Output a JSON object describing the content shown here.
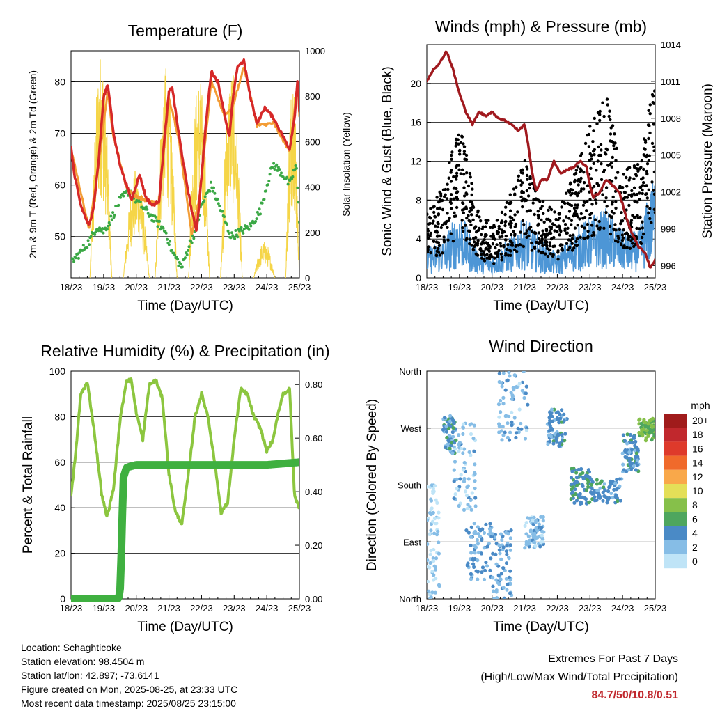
{
  "colors": {
    "t2m": "#d62828",
    "t9m": "#f39c34",
    "td": "#3aa845",
    "solar": "#f5d547",
    "wind": "#4d96d6",
    "gust": "#000000",
    "pressure": "#a0191e",
    "rh": "#8cc63f",
    "precip": "#3fb040",
    "extremes": "#c0282d"
  },
  "time_ticks": [
    "18/23",
    "19/23",
    "20/23",
    "21/23",
    "22/23",
    "23/23",
    "24/23",
    "25/23"
  ],
  "x_label": "Time (Day/UTC)",
  "chart_data": [
    {
      "type": "line",
      "title": "Temperature (F)",
      "ylabel": "2m & 9m T (Red, Orange) & 2m Td (Green)",
      "ylabel_right": "Solar Insolation (Yellow)",
      "ylim": [
        42,
        86
      ],
      "yticks": [
        50,
        60,
        70,
        80
      ],
      "ylim_right": [
        0,
        1000
      ],
      "yticks_right": [
        0,
        200,
        400,
        600,
        800,
        1000
      ],
      "xlim": [
        0,
        7
      ],
      "series": [
        {
          "color_key": "t2m",
          "x": [
            0,
            0.1,
            0.3,
            0.55,
            0.7,
            0.85,
            1.0,
            1.12,
            1.2,
            1.3,
            1.5,
            1.7,
            1.85,
            1.95,
            2.1,
            2.3,
            2.5,
            2.7,
            2.85,
            3.0,
            3.1,
            3.3,
            3.5,
            3.7,
            3.85,
            3.95,
            4.15,
            4.3,
            4.5,
            4.7,
            4.85,
            4.95,
            5.1,
            5.3,
            5.5,
            5.7,
            5.95,
            6.2,
            6.45,
            6.7,
            6.85,
            6.95,
            7.0
          ],
          "values": [
            67.5,
            62,
            56,
            52,
            56,
            65,
            77,
            79.5,
            76,
            70,
            64,
            60,
            57,
            59,
            62,
            57.5,
            56,
            57,
            68,
            78,
            79,
            70,
            62,
            55,
            51,
            58,
            73,
            82,
            80,
            74,
            69,
            76,
            83,
            84,
            77,
            72,
            75,
            73,
            70,
            67,
            73,
            81,
            74
          ]
        },
        {
          "color_key": "t9m",
          "x": [
            0,
            0.55,
            0.85,
            1.12,
            1.3,
            1.7,
            1.95,
            2.3,
            2.7,
            3.0,
            3.3,
            3.7,
            3.95,
            4.3,
            4.7,
            4.95,
            5.3,
            5.7,
            6.2,
            6.7,
            6.95,
            7.0
          ],
          "values": [
            67,
            51.5,
            64,
            78,
            69.5,
            59.5,
            58,
            57,
            56.5,
            77,
            69,
            50.5,
            58,
            80,
            73.5,
            75,
            83,
            71.5,
            72,
            66.5,
            80,
            73
          ]
        },
        {
          "color_key": "td",
          "x": [
            0,
            0.3,
            0.55,
            0.8,
            1.0,
            1.2,
            1.5,
            1.8,
            2.0,
            2.3,
            2.6,
            2.9,
            3.1,
            3.4,
            3.6,
            3.8,
            4.0,
            4.3,
            4.6,
            4.9,
            5.2,
            5.5,
            5.8,
            6.0,
            6.2,
            6.5,
            6.7,
            6.9,
            7.0
          ],
          "values": [
            45,
            47,
            49,
            52,
            51,
            53,
            57,
            59,
            57,
            55,
            53,
            51,
            47,
            44,
            48,
            51,
            56,
            60,
            55,
            50,
            51,
            52,
            55,
            60,
            64,
            62,
            60,
            64,
            53
          ]
        },
        {
          "color_key": "solar",
          "axis": "right",
          "peaks": [
            [
              0.58,
              1.25,
              1000
            ],
            [
              1.6,
              2.4,
              480
            ],
            [
              2.58,
              3.25,
              940
            ],
            [
              3.6,
              4.25,
              900
            ],
            [
              4.58,
              5.25,
              930
            ],
            [
              5.6,
              6.25,
              160
            ],
            [
              6.58,
              7.0,
              900
            ]
          ]
        }
      ]
    },
    {
      "type": "scatter",
      "title": "Winds (mph) & Pressure (mb)",
      "ylabel": "Sonic Wind & Gust (Blue, Black)",
      "ylabel_right": "Station Pressure (Maroon)",
      "ylim": [
        0,
        24
      ],
      "yticks": [
        0,
        4,
        8,
        12,
        16,
        20
      ],
      "ylim_right": [
        995,
        1014
      ],
      "yticks_right": [
        996,
        999,
        1002,
        1005,
        1008,
        1011,
        1014
      ],
      "xlim": [
        0,
        7
      ],
      "series": [
        {
          "color_key": "pressure",
          "type": "line",
          "axis": "right",
          "x": [
            0,
            0.2,
            0.4,
            0.6,
            0.8,
            1.0,
            1.2,
            1.4,
            1.6,
            1.8,
            2.0,
            2.2,
            2.4,
            2.6,
            2.8,
            3.0,
            3.1,
            3.2,
            3.35,
            3.5,
            3.7,
            3.9,
            4.1,
            4.3,
            4.5,
            4.7,
            4.9,
            5.0,
            5.1,
            5.3,
            5.5,
            5.7,
            5.9,
            6.1,
            6.3,
            6.5,
            6.7,
            6.85,
            7.0
          ],
          "values": [
            1011,
            1012,
            1012.5,
            1013.5,
            1012,
            1010,
            1008.5,
            1007.5,
            1008.5,
            1008.2,
            1008.5,
            1008,
            1007.8,
            1007.5,
            1007,
            1007.5,
            1006,
            1004,
            1002,
            1003,
            1003,
            1004.5,
            1003.5,
            1003.8,
            1004,
            1004.5,
            1004,
            1002.5,
            1001.5,
            1002,
            1003,
            1002.5,
            1002,
            1000,
            998.5,
            997.5,
            997,
            995.8,
            996.5
          ]
        },
        {
          "color_key": "wind",
          "name": "",
          "x": [
            0,
            0.5,
            1.0,
            1.5,
            2.0,
            2.5,
            3.0,
            3.5,
            4.0,
            4.5,
            5.0,
            5.5,
            6.0,
            6.5,
            7.0
          ],
          "values": [
            2,
            2.5,
            4.5,
            2,
            1.5,
            2.5,
            4,
            2.5,
            1.5,
            3,
            4,
            4.5,
            3,
            3,
            7
          ]
        },
        {
          "color_key": "gust",
          "name": "",
          "x": [
            0,
            0.5,
            1.0,
            1.5,
            2.0,
            2.5,
            3.0,
            3.5,
            4.0,
            4.5,
            5.0,
            5.5,
            6.0,
            6.5,
            7.0
          ],
          "values": [
            5,
            7,
            12,
            6,
            4,
            6,
            9,
            6,
            5,
            8,
            12,
            14,
            8,
            9,
            16
          ]
        }
      ]
    },
    {
      "type": "line",
      "title": "Relative Humidity (%) & Precipitation (in)",
      "ylabel": "Percent & Total Rainfall",
      "ylim": [
        0,
        100
      ],
      "yticks": [
        0,
        20,
        40,
        60,
        80,
        100
      ],
      "ylim_right": [
        0,
        0.85
      ],
      "yticks_right": [
        "0.00",
        "0.20",
        "0.40",
        "0.60",
        "0.80"
      ],
      "xlim": [
        0,
        7
      ],
      "series": [
        {
          "color_key": "rh",
          "x": [
            0,
            0.15,
            0.3,
            0.5,
            0.7,
            0.95,
            1.1,
            1.3,
            1.5,
            1.7,
            1.85,
            2.0,
            2.2,
            2.4,
            2.6,
            2.8,
            3.0,
            3.2,
            3.4,
            3.6,
            3.8,
            4.0,
            4.2,
            4.4,
            4.6,
            4.8,
            5.0,
            5.2,
            5.4,
            5.6,
            5.8,
            6.0,
            6.2,
            6.35,
            6.5,
            6.7,
            6.85,
            7.0
          ],
          "values": [
            45,
            65,
            90,
            95,
            75,
            45,
            36,
            48,
            78,
            96,
            96,
            82,
            70,
            94,
            96,
            88,
            55,
            38,
            33,
            55,
            80,
            90,
            80,
            60,
            38,
            42,
            70,
            92,
            90,
            80,
            75,
            65,
            70,
            82,
            90,
            92,
            45,
            40
          ]
        },
        {
          "color_key": "precip",
          "axis": "right",
          "x": [
            0,
            1.2,
            1.45,
            1.5,
            1.55,
            1.6,
            1.7,
            2.0,
            4.0,
            6.0,
            7.0
          ],
          "values": [
            0,
            0,
            0,
            0.02,
            0.2,
            0.45,
            0.49,
            0.5,
            0.5,
            0.5,
            0.51
          ]
        }
      ]
    },
    {
      "type": "scatter",
      "title": "Wind Direction",
      "ylabel": "Direction (Colored By Speed)",
      "yticks": [
        "North",
        "East",
        "South",
        "West",
        "North"
      ],
      "ylim": [
        0,
        360
      ],
      "xlim": [
        0,
        7
      ],
      "legend": {
        "title": "mph",
        "labels": [
          "20+",
          "18",
          "16",
          "14",
          "12",
          "10",
          "8",
          "6",
          "4",
          "2",
          "0"
        ],
        "colors": [
          "#a01b1b",
          "#c1282d",
          "#de3a2b",
          "#f06a2b",
          "#f9a84a",
          "#e4df58",
          "#86c04a",
          "#4ea65e",
          "#4a8ac6",
          "#86bde6",
          "#bfe4f7"
        ],
        "placement": "right"
      },
      "clusters": [
        {
          "x": [
            0,
            0.4
          ],
          "dir": [
            0,
            180
          ],
          "speed": 1
        },
        {
          "x": [
            0.5,
            0.9
          ],
          "dir": [
            230,
            290
          ],
          "speed": 4
        },
        {
          "x": [
            0.8,
            1.5
          ],
          "dir": [
            140,
            280
          ],
          "speed": 2
        },
        {
          "x": [
            1.2,
            2.0
          ],
          "dir": [
            30,
            120
          ],
          "speed": 3
        },
        {
          "x": [
            2.0,
            2.6
          ],
          "dir": [
            0,
            110
          ],
          "speed": 3
        },
        {
          "x": [
            2.2,
            3.1
          ],
          "dir": [
            250,
            360
          ],
          "speed": 2
        },
        {
          "x": [
            3.0,
            3.6
          ],
          "dir": [
            80,
            130
          ],
          "speed": 2
        },
        {
          "x": [
            3.7,
            4.3
          ],
          "dir": [
            240,
            300
          ],
          "speed": 4
        },
        {
          "x": [
            4.4,
            5.0
          ],
          "dir": [
            150,
            210
          ],
          "speed": 5
        },
        {
          "x": [
            5.0,
            6.0
          ],
          "dir": [
            150,
            190
          ],
          "speed": 4
        },
        {
          "x": [
            6.0,
            6.5
          ],
          "dir": [
            200,
            260
          ],
          "speed": 4
        },
        {
          "x": [
            6.5,
            7.0
          ],
          "dir": [
            250,
            285
          ],
          "speed": 7
        }
      ]
    }
  ],
  "info": {
    "location": "Location: Schaghticoke",
    "elevation": "Station elevation: 98.4504 m",
    "latlon": "Station lat/lon: 42.897; -73.6141",
    "created": "Figure created on Mon, 2025-08-25, at 23:33 UTC",
    "timestamp": "Most recent data timestamp: 2025/08/25 23:15:00"
  },
  "extremes": {
    "title": "Extremes For Past 7 Days",
    "subtitle": "(High/Low/Max Wind/Total Precipitation)",
    "values": "84.7/50/10.8/0.51"
  }
}
